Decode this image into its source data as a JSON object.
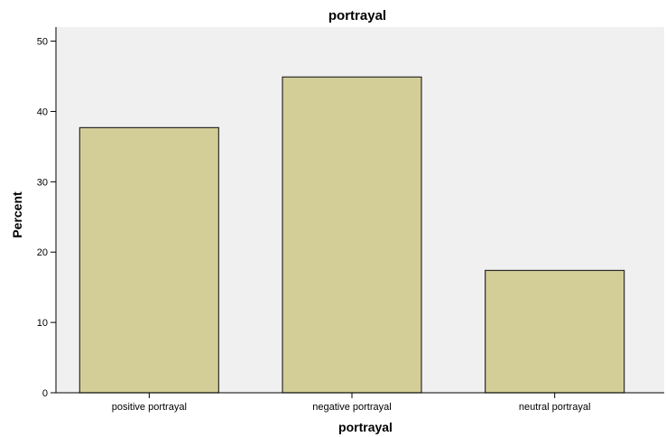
{
  "chart_data": {
    "type": "bar",
    "title": "portrayal",
    "xlabel": "portrayal",
    "ylabel": "Percent",
    "categories": [
      "positive portrayal",
      "negative portrayal",
      "neutral portrayal"
    ],
    "values": [
      37.7,
      44.9,
      17.4
    ],
    "ylim": [
      0,
      52
    ],
    "yticks": [
      "0",
      "10",
      "20",
      "30",
      "40",
      "50"
    ],
    "grid": false,
    "legend": "none",
    "colors": {
      "plot_background": "#f0f0f0",
      "bar_fill": "#d3ce97",
      "bar_stroke": "#2b2b2b"
    }
  }
}
